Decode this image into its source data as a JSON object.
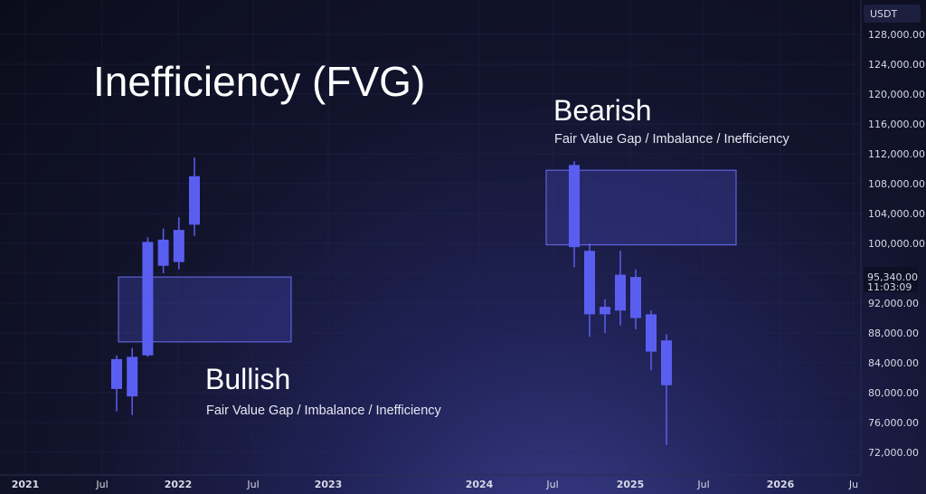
{
  "chart_data": {
    "type": "candlestick",
    "title": "Inefficiency (FVG)",
    "currency": "USDT",
    "ylim": [
      70000,
      130000
    ],
    "y_ticks": [
      72000,
      76000,
      80000,
      84000,
      88000,
      92000,
      96000,
      100000,
      104000,
      108000,
      112000,
      116000,
      120000,
      124000,
      128000
    ],
    "y_tick_labels": [
      "72,000.00",
      "76,000.00",
      "80,000.00",
      "84,000.00",
      "88,000.00",
      "92,000.00",
      "96,000.00",
      "100,000.00",
      "104,000.00",
      "108,000.00",
      "112,000.00",
      "116,000.00",
      "120,000.00",
      "124,000.00",
      "128,000.00"
    ],
    "x_tick_labels": [
      "2021",
      "Jul",
      "2022",
      "Jul",
      "2023",
      "2024",
      "Jul",
      "2025",
      "Jul",
      "2026",
      "Ju"
    ],
    "price_label": {
      "price": "95,340.00",
      "time": "11:03:09",
      "value": 95340
    },
    "annotations": [
      {
        "heading": "Bullish",
        "subtitle": "Fair Value Gap / Imbalance / Inefficiency"
      },
      {
        "heading": "Bearish",
        "subtitle": "Fair Value Gap / Imbalance / Inefficiency"
      }
    ],
    "fvg_zones": [
      {
        "type": "bullish",
        "top": 95500,
        "bottom": 86800
      },
      {
        "type": "bearish",
        "top": 109800,
        "bottom": 99800
      }
    ],
    "candles_bullish_example": [
      {
        "open": 80500,
        "high": 85000,
        "low": 77500,
        "close": 84500
      },
      {
        "open": 79500,
        "high": 86000,
        "low": 77000,
        "close": 84800
      },
      {
        "open": 85000,
        "high": 100800,
        "low": 84800,
        "close": 100200
      },
      {
        "open": 97000,
        "high": 102000,
        "low": 96000,
        "close": 100500
      },
      {
        "open": 97500,
        "high": 103500,
        "low": 96500,
        "close": 101800
      },
      {
        "open": 102500,
        "high": 111500,
        "low": 101000,
        "close": 109000
      }
    ],
    "candles_bearish_example": [
      {
        "open": 110500,
        "high": 111000,
        "low": 96800,
        "close": 99500
      },
      {
        "open": 99000,
        "high": 100000,
        "low": 87500,
        "close": 90500
      },
      {
        "open": 90500,
        "high": 92500,
        "low": 88000,
        "close": 91500
      },
      {
        "open": 95800,
        "high": 99000,
        "low": 89000,
        "close": 91000
      },
      {
        "open": 95500,
        "high": 96500,
        "low": 88500,
        "close": 90000
      },
      {
        "open": 90500,
        "high": 91000,
        "low": 83000,
        "close": 85500
      },
      {
        "open": 87000,
        "high": 87800,
        "low": 73000,
        "close": 81000
      }
    ],
    "colors": {
      "candle": "#5a5ef0",
      "zone_fill": "#3a3f9c",
      "zone_border": "#6a6ff2",
      "text": "#ffffff",
      "axis_text": "#d7d9e6",
      "grid": "#2a2d55"
    }
  }
}
